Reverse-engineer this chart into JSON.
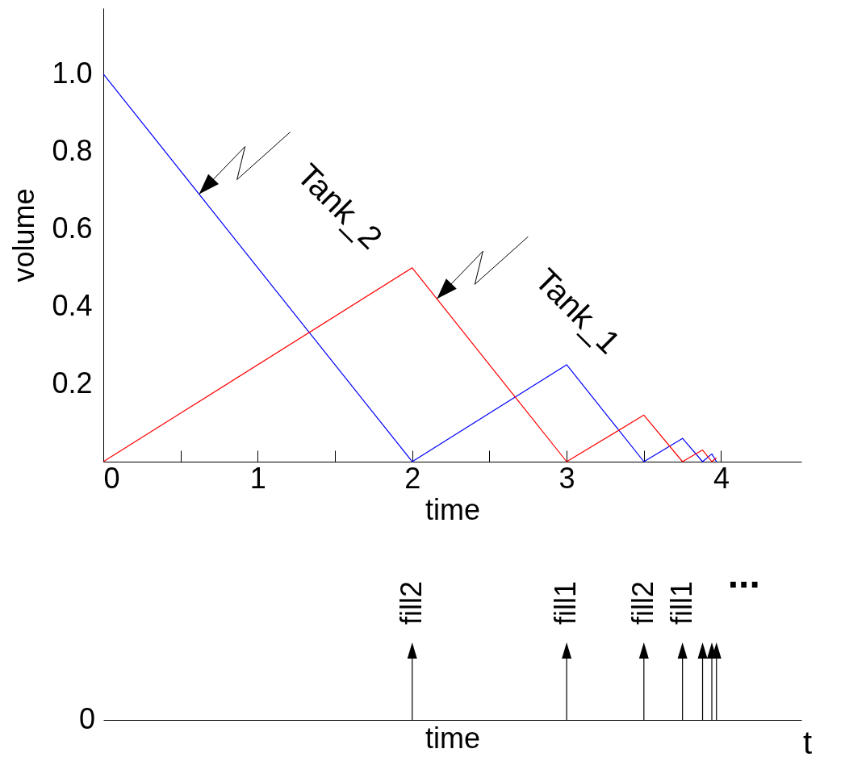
{
  "chart_data": [
    {
      "type": "line",
      "xlabel": "time",
      "ylabel": "volume",
      "xlim": [
        0,
        4.52
      ],
      "ylim": [
        0,
        1.17
      ],
      "xticks": [
        0,
        {
          "value": 0.5,
          "label": null
        },
        1,
        {
          "value": 1.5,
          "label": null
        },
        2,
        {
          "value": 2.5,
          "label": null
        },
        3,
        {
          "value": 3.5,
          "label": null
        },
        4
      ],
      "yticks": [
        0.2,
        0.4,
        0.6,
        0.8,
        {
          "value": 1,
          "label": "1.0"
        }
      ],
      "series": [
        {
          "color": "#0000ff",
          "x": [
            0,
            2,
            3,
            3.5,
            3.75,
            3.88,
            3.94,
            3.97
          ],
          "values": [
            1,
            0,
            0.25,
            0,
            0.06,
            0,
            0.02,
            0
          ]
        },
        {
          "color": "#ff0000",
          "x": [
            0,
            2,
            3,
            3.5,
            3.75,
            3.88,
            3.94,
            3.97
          ],
          "values": [
            0,
            0.5,
            0,
            0.12,
            0,
            0.03,
            0,
            0.01
          ]
        }
      ],
      "annotations": [
        {
          "text": "Tank_2",
          "x": 0.62,
          "y": 0.69
        },
        {
          "text": "Tank_1",
          "x": 2.16,
          "y": 0.42
        }
      ],
      "grid": false,
      "marker": "none"
    },
    {
      "type": "other",
      "xlabel": "time",
      "annotations": [
        "fill2",
        "fill1",
        "fill2",
        "fill1",
        "0",
        "t",
        "..."
      ]
    }
  ]
}
